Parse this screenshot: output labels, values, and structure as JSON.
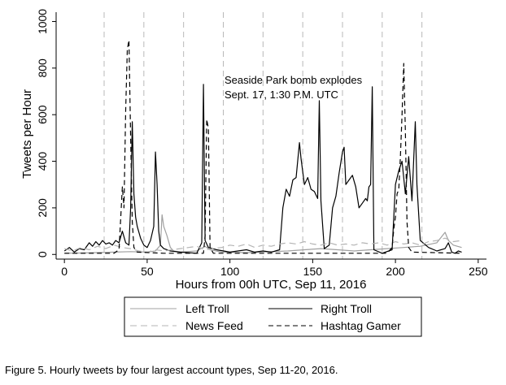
{
  "chart_data": {
    "type": "line",
    "title": "",
    "xlabel": "Hours from 00h UTC, Sep 11, 2016",
    "ylabel": "Tweets per Hour",
    "xlim": [
      -5,
      255
    ],
    "ylim": [
      -20,
      1040
    ],
    "xticks": [
      0,
      50,
      100,
      150,
      200,
      250
    ],
    "yticks": [
      0,
      200,
      400,
      600,
      800,
      1000
    ],
    "grid": false,
    "day_markers": [
      24,
      48,
      72,
      96,
      120,
      144,
      168,
      192,
      216
    ],
    "legend_position": "bottom",
    "annotation": {
      "lines": [
        "Seaside Park bomb explodes",
        "Sept. 17, 1:30 P.M. UTC"
      ],
      "x": 97,
      "y": 745
    },
    "series": [
      {
        "name": "Left Troll",
        "color": "#a0a0a0",
        "dash": "solid",
        "points": [
          [
            0,
            5
          ],
          [
            10,
            6
          ],
          [
            20,
            8
          ],
          [
            30,
            10
          ],
          [
            40,
            12
          ],
          [
            50,
            10
          ],
          [
            55,
            15
          ],
          [
            58,
            40
          ],
          [
            59,
            170
          ],
          [
            60,
            120
          ],
          [
            62,
            80
          ],
          [
            64,
            30
          ],
          [
            66,
            15
          ],
          [
            70,
            10
          ],
          [
            80,
            15
          ],
          [
            85,
            35
          ],
          [
            88,
            20
          ],
          [
            95,
            10
          ],
          [
            110,
            8
          ],
          [
            125,
            12
          ],
          [
            135,
            15
          ],
          [
            145,
            20
          ],
          [
            155,
            25
          ],
          [
            165,
            20
          ],
          [
            175,
            15
          ],
          [
            185,
            20
          ],
          [
            195,
            25
          ],
          [
            205,
            30
          ],
          [
            215,
            35
          ],
          [
            225,
            50
          ],
          [
            230,
            95
          ],
          [
            232,
            60
          ],
          [
            235,
            40
          ],
          [
            240,
            30
          ]
        ]
      },
      {
        "name": "Right Troll",
        "color": "#000000",
        "dash": "solid",
        "points": [
          [
            0,
            15
          ],
          [
            3,
            30
          ],
          [
            6,
            10
          ],
          [
            9,
            25
          ],
          [
            12,
            20
          ],
          [
            15,
            50
          ],
          [
            17,
            35
          ],
          [
            19,
            55
          ],
          [
            21,
            40
          ],
          [
            23,
            60
          ],
          [
            25,
            45
          ],
          [
            27,
            50
          ],
          [
            29,
            40
          ],
          [
            31,
            60
          ],
          [
            33,
            50
          ],
          [
            35,
            100
          ],
          [
            37,
            50
          ],
          [
            39,
            40
          ],
          [
            40,
            200
          ],
          [
            41,
            570
          ],
          [
            42,
            260
          ],
          [
            43,
            160
          ],
          [
            44,
            120
          ],
          [
            46,
            70
          ],
          [
            48,
            40
          ],
          [
            50,
            30
          ],
          [
            52,
            60
          ],
          [
            54,
            120
          ],
          [
            55,
            440
          ],
          [
            56,
            300
          ],
          [
            57,
            100
          ],
          [
            58,
            40
          ],
          [
            60,
            25
          ],
          [
            64,
            15
          ],
          [
            70,
            10
          ],
          [
            80,
            5
          ],
          [
            83,
            50
          ],
          [
            84,
            730
          ],
          [
            85,
            60
          ],
          [
            87,
            30
          ],
          [
            92,
            20
          ],
          [
            100,
            10
          ],
          [
            110,
            20
          ],
          [
            115,
            10
          ],
          [
            120,
            15
          ],
          [
            125,
            10
          ],
          [
            130,
            20
          ],
          [
            132,
            200
          ],
          [
            134,
            280
          ],
          [
            136,
            250
          ],
          [
            138,
            320
          ],
          [
            140,
            330
          ],
          [
            142,
            480
          ],
          [
            143,
            410
          ],
          [
            145,
            300
          ],
          [
            147,
            330
          ],
          [
            149,
            280
          ],
          [
            151,
            270
          ],
          [
            153,
            240
          ],
          [
            154,
            660
          ],
          [
            155,
            230
          ],
          [
            157,
            25
          ],
          [
            160,
            40
          ],
          [
            162,
            200
          ],
          [
            164,
            250
          ],
          [
            166,
            350
          ],
          [
            168,
            440
          ],
          [
            169,
            460
          ],
          [
            170,
            300
          ],
          [
            172,
            320
          ],
          [
            174,
            340
          ],
          [
            176,
            290
          ],
          [
            178,
            200
          ],
          [
            180,
            220
          ],
          [
            182,
            240
          ],
          [
            183,
            230
          ],
          [
            184,
            290
          ],
          [
            185,
            300
          ],
          [
            186,
            720
          ],
          [
            187,
            20
          ],
          [
            192,
            5
          ],
          [
            198,
            20
          ],
          [
            200,
            300
          ],
          [
            202,
            360
          ],
          [
            204,
            400
          ],
          [
            206,
            260
          ],
          [
            208,
            420
          ],
          [
            210,
            230
          ],
          [
            212,
            570
          ],
          [
            213,
            300
          ],
          [
            215,
            60
          ],
          [
            220,
            30
          ],
          [
            225,
            15
          ],
          [
            230,
            25
          ],
          [
            232,
            50
          ],
          [
            234,
            10
          ],
          [
            236,
            5
          ],
          [
            238,
            15
          ],
          [
            240,
            10
          ]
        ]
      },
      {
        "name": "News Feed",
        "color": "#b4b4b4",
        "dash": "8,5",
        "points": [
          [
            0,
            25
          ],
          [
            5,
            15
          ],
          [
            10,
            30
          ],
          [
            15,
            20
          ],
          [
            20,
            35
          ],
          [
            25,
            25
          ],
          [
            30,
            40
          ],
          [
            35,
            30
          ],
          [
            40,
            25
          ],
          [
            45,
            15
          ],
          [
            50,
            10
          ],
          [
            55,
            20
          ],
          [
            60,
            15
          ],
          [
            65,
            20
          ],
          [
            70,
            25
          ],
          [
            75,
            30
          ],
          [
            80,
            35
          ],
          [
            85,
            20
          ],
          [
            90,
            25
          ],
          [
            95,
            30
          ],
          [
            100,
            40
          ],
          [
            105,
            35
          ],
          [
            110,
            45
          ],
          [
            115,
            30
          ],
          [
            120,
            40
          ],
          [
            125,
            35
          ],
          [
            130,
            45
          ],
          [
            135,
            50
          ],
          [
            140,
            45
          ],
          [
            145,
            55
          ],
          [
            150,
            45
          ],
          [
            155,
            40
          ],
          [
            160,
            50
          ],
          [
            165,
            40
          ],
          [
            170,
            45
          ],
          [
            175,
            40
          ],
          [
            180,
            50
          ],
          [
            185,
            45
          ],
          [
            190,
            50
          ],
          [
            195,
            40
          ],
          [
            200,
            55
          ],
          [
            205,
            45
          ],
          [
            210,
            50
          ],
          [
            215,
            40
          ],
          [
            220,
            55
          ],
          [
            225,
            60
          ],
          [
            230,
            70
          ],
          [
            235,
            55
          ],
          [
            240,
            60
          ]
        ]
      },
      {
        "name": "Hashtag Gamer",
        "color": "#000000",
        "dash": "6,4",
        "points": [
          [
            0,
            5
          ],
          [
            30,
            5
          ],
          [
            33,
            20
          ],
          [
            34,
            150
          ],
          [
            35,
            290
          ],
          [
            36,
            200
          ],
          [
            37,
            620
          ],
          [
            38,
            880
          ],
          [
            39,
            920
          ],
          [
            40,
            500
          ],
          [
            41,
            140
          ],
          [
            42,
            30
          ],
          [
            44,
            10
          ],
          [
            60,
            5
          ],
          [
            84,
            5
          ],
          [
            85,
            80
          ],
          [
            86,
            580
          ],
          [
            87,
            540
          ],
          [
            88,
            30
          ],
          [
            90,
            5
          ],
          [
            195,
            5
          ],
          [
            198,
            30
          ],
          [
            199,
            110
          ],
          [
            200,
            160
          ],
          [
            201,
            260
          ],
          [
            202,
            280
          ],
          [
            203,
            420
          ],
          [
            204,
            600
          ],
          [
            205,
            820
          ],
          [
            206,
            530
          ],
          [
            207,
            140
          ],
          [
            208,
            30
          ],
          [
            210,
            10
          ],
          [
            240,
            5
          ]
        ]
      }
    ]
  },
  "legend": {
    "left_troll": "Left Troll",
    "right_troll": "Right Troll",
    "news_feed": "News Feed",
    "hashtag_gamer": "Hashtag Gamer"
  },
  "caption": "Figure 5. Hourly tweets by four largest account types, Sep 11-20, 2016."
}
